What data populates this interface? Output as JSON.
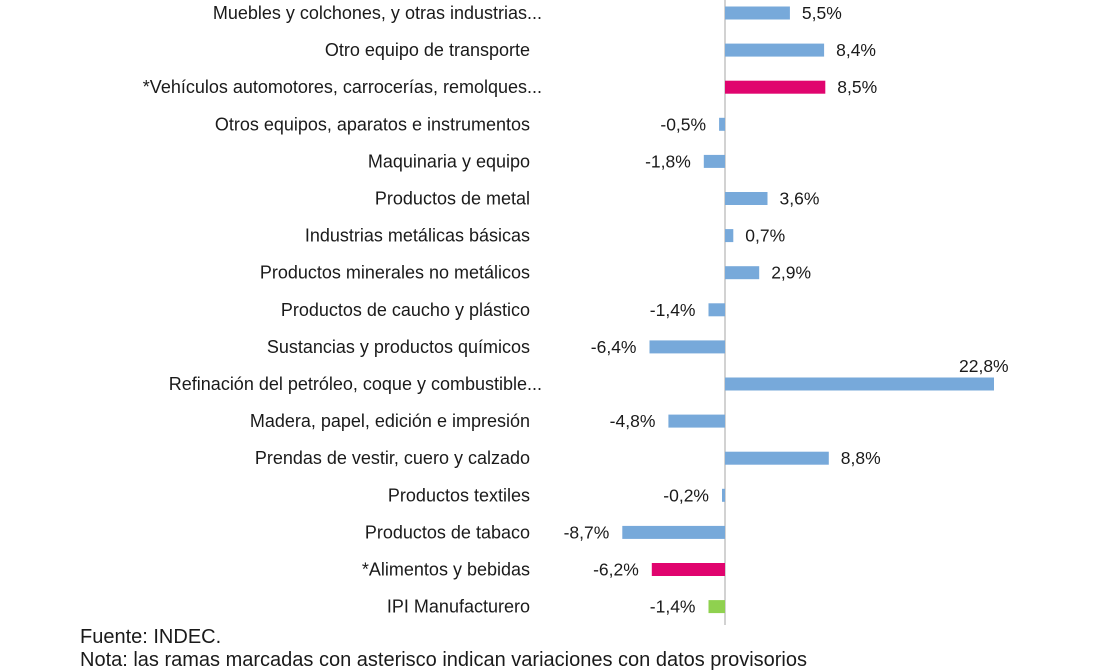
{
  "chart_data": {
    "type": "bar",
    "orientation": "horizontal",
    "unit": "%",
    "categories": [
      "Muebles y colchones, y otras industrias...",
      "Otro equipo de transporte",
      "*Vehículos automotores, carrocerías, remolques...",
      "Otros equipos, aparatos e instrumentos",
      "Maquinaria y equipo",
      "Productos de metal",
      "Industrias metálicas básicas",
      "Productos minerales no metálicos",
      "Productos de caucho y plástico",
      "Sustancias y productos químicos",
      "Refinación del petróleo, coque y combustible...",
      "Madera, papel, edición e impresión",
      "Prendas de vestir, cuero y calzado",
      "Productos textiles",
      "Productos de tabaco",
      "*Alimentos y bebidas",
      "IPI Manufacturero"
    ],
    "values": [
      5.5,
      8.4,
      8.5,
      -0.5,
      -1.8,
      3.6,
      0.7,
      2.9,
      -1.4,
      -6.4,
      22.8,
      -4.8,
      8.8,
      -0.2,
      -8.7,
      -6.2,
      -1.4
    ],
    "data_labels": [
      "5,5%",
      "8,4%",
      "8,5%",
      "-0,5%",
      "-1,8%",
      "3,6%",
      "0,7%",
      "2,9%",
      "-1,4%",
      "-6,4%",
      "22,8%",
      "-4,8%",
      "8,8%",
      "-0,2%",
      "-8,7%",
      "-6,2%",
      "-1,4%"
    ],
    "colors": [
      "#77a9da",
      "#77a9da",
      "#e0046e",
      "#77a9da",
      "#77a9da",
      "#77a9da",
      "#77a9da",
      "#77a9da",
      "#77a9da",
      "#77a9da",
      "#77a9da",
      "#77a9da",
      "#77a9da",
      "#77a9da",
      "#77a9da",
      "#e0046e",
      "#8fd14f"
    ],
    "axis_color": "#a6a6a6",
    "grid": false
  },
  "source": "Fuente: INDEC.",
  "note": "Nota: las ramas marcadas con asterisco indican variaciones con datos provisorios"
}
